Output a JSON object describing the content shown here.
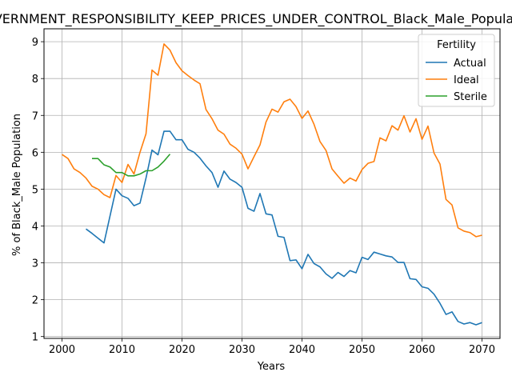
{
  "chart_data": {
    "type": "line",
    "title": "GOVERNMENT_RESPONSIBILITY_KEEP_PRICES_UNDER_CONTROL_Black_Male_Population",
    "xlabel": "Years",
    "ylabel": "% of Black_Male Population",
    "xlim": [
      1997,
      2073
    ],
    "ylim": [
      0.95,
      9.35
    ],
    "xticks": [
      2000,
      2010,
      2020,
      2030,
      2040,
      2050,
      2060,
      2070
    ],
    "yticks": [
      1,
      2,
      3,
      4,
      5,
      6,
      7,
      8,
      9
    ],
    "grid": true,
    "legend": {
      "title": "Fertility",
      "placement": "top-right"
    },
    "series": [
      {
        "name": "Actual",
        "color": "#1f77b4",
        "x": [
          2004,
          2005,
          2006,
          2007,
          2008,
          2009,
          2010,
          2011,
          2012,
          2013,
          2014,
          2015,
          2016,
          2017,
          2018,
          2019,
          2020,
          2021,
          2022,
          2023,
          2024,
          2025,
          2026,
          2027,
          2028,
          2029,
          2030,
          2031,
          2032,
          2033,
          2034,
          2035,
          2036,
          2037,
          2038,
          2039,
          2040,
          2041,
          2042,
          2043,
          2044,
          2045,
          2046,
          2047,
          2048,
          2049,
          2050,
          2051,
          2052,
          2053,
          2054,
          2055,
          2056,
          2057,
          2058,
          2059,
          2060,
          2061,
          2062,
          2063,
          2064,
          2065,
          2066,
          2067,
          2068,
          2069,
          2070
        ],
        "y": [
          3.92,
          3.8,
          3.67,
          3.54,
          4.27,
          5.0,
          4.82,
          4.75,
          4.55,
          4.62,
          5.3,
          6.06,
          5.93,
          6.57,
          6.57,
          6.34,
          6.34,
          6.08,
          6.0,
          5.84,
          5.63,
          5.45,
          5.05,
          5.49,
          5.27,
          5.18,
          5.05,
          4.48,
          4.4,
          4.88,
          4.33,
          4.3,
          3.72,
          3.69,
          3.06,
          3.08,
          2.84,
          3.23,
          2.98,
          2.89,
          2.7,
          2.58,
          2.74,
          2.63,
          2.79,
          2.73,
          3.15,
          3.09,
          3.29,
          3.24,
          3.19,
          3.16,
          3.01,
          3.01,
          2.57,
          2.55,
          2.35,
          2.31,
          2.15,
          1.9,
          1.6,
          1.67,
          1.41,
          1.34,
          1.38,
          1.32,
          1.38
        ]
      },
      {
        "name": "Ideal",
        "color": "#ff7f0e",
        "x": [
          2000,
          2001,
          2002,
          2003,
          2004,
          2005,
          2006,
          2007,
          2008,
          2009,
          2010,
          2011,
          2012,
          2013,
          2014,
          2015,
          2016,
          2017,
          2018,
          2019,
          2020,
          2021,
          2022,
          2023,
          2024,
          2025,
          2026,
          2027,
          2028,
          2029,
          2030,
          2031,
          2032,
          2033,
          2034,
          2035,
          2036,
          2037,
          2038,
          2039,
          2040,
          2041,
          2042,
          2043,
          2044,
          2045,
          2046,
          2047,
          2048,
          2049,
          2050,
          2051,
          2052,
          2053,
          2054,
          2055,
          2056,
          2057,
          2058,
          2059,
          2060,
          2061,
          2062,
          2063,
          2064,
          2065,
          2066,
          2067,
          2068,
          2069,
          2070
        ],
        "y": [
          5.94,
          5.83,
          5.55,
          5.45,
          5.3,
          5.08,
          5.0,
          4.85,
          4.77,
          5.37,
          5.18,
          5.67,
          5.41,
          6.0,
          6.5,
          8.23,
          8.09,
          8.94,
          8.77,
          8.43,
          8.21,
          8.08,
          7.96,
          7.86,
          7.16,
          6.91,
          6.6,
          6.49,
          6.22,
          6.11,
          5.95,
          5.55,
          5.88,
          6.2,
          6.82,
          7.17,
          7.09,
          7.37,
          7.44,
          7.24,
          6.92,
          7.12,
          6.76,
          6.29,
          6.05,
          5.55,
          5.35,
          5.16,
          5.3,
          5.22,
          5.53,
          5.7,
          5.75,
          6.39,
          6.31,
          6.72,
          6.6,
          6.99,
          6.55,
          6.91,
          6.35,
          6.71,
          5.98,
          5.68,
          4.72,
          4.57,
          3.95,
          3.86,
          3.82,
          3.71,
          3.75
        ]
      },
      {
        "name": "Sterile",
        "color": "#2ca02c",
        "x": [
          2005,
          2006,
          2007,
          2008,
          2009,
          2010,
          2011,
          2012,
          2013,
          2014,
          2015,
          2016,
          2017,
          2018
        ],
        "y": [
          5.83,
          5.83,
          5.66,
          5.6,
          5.45,
          5.45,
          5.36,
          5.36,
          5.41,
          5.5,
          5.5,
          5.6,
          5.76,
          5.95
        ]
      }
    ]
  }
}
